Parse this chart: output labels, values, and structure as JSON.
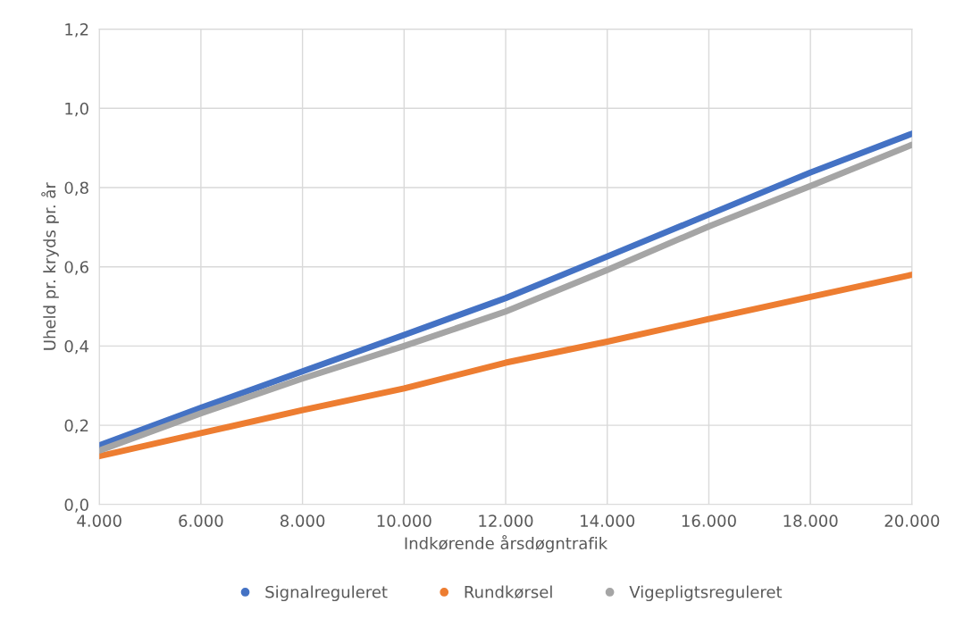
{
  "chart_data": {
    "type": "line",
    "xlabel": "Indkørende årsdøgntrafik",
    "ylabel": "Uheld pr. kryds pr. år",
    "x": [
      4000,
      6000,
      8000,
      10000,
      12000,
      14000,
      16000,
      18000,
      20000
    ],
    "series": [
      {
        "name": "Signalreguleret",
        "color": "#4472c4",
        "values": [
          0.149,
          0.244,
          0.336,
          0.428,
          0.521,
          0.626,
          0.732,
          0.838,
          0.936
        ]
      },
      {
        "name": "Rundkørsel",
        "color": "#ed7d31",
        "values": [
          0.122,
          0.18,
          0.238,
          0.293,
          0.358,
          0.411,
          0.468,
          0.524,
          0.58
        ]
      },
      {
        "name": "Vigepligtsreguleret",
        "color": "#a5a5a5",
        "values": [
          0.136,
          0.23,
          0.318,
          0.4,
          0.487,
          0.592,
          0.702,
          0.804,
          0.908
        ]
      }
    ],
    "xlim": [
      4000,
      20000
    ],
    "ylim": [
      0,
      1.2
    ],
    "xticks": [
      {
        "value": 4000,
        "label": "4.000"
      },
      {
        "value": 6000,
        "label": "6.000"
      },
      {
        "value": 8000,
        "label": "8.000"
      },
      {
        "value": 10000,
        "label": "10.000"
      },
      {
        "value": 12000,
        "label": "12.000"
      },
      {
        "value": 14000,
        "label": "14.000"
      },
      {
        "value": 16000,
        "label": "16.000"
      },
      {
        "value": 18000,
        "label": "18.000"
      },
      {
        "value": 20000,
        "label": "20.000"
      }
    ],
    "yticks": [
      {
        "value": 0,
        "label": "0,0"
      },
      {
        "value": 0.2,
        "label": "0,2"
      },
      {
        "value": 0.4,
        "label": "0,4"
      },
      {
        "value": 0.6,
        "label": "0,6"
      },
      {
        "value": 0.8,
        "label": "0,8"
      },
      {
        "value": 1.0,
        "label": "1,0"
      },
      {
        "value": 1.2,
        "label": "1,2"
      }
    ],
    "grid": true,
    "legend": "bottom",
    "line_style": "solid"
  }
}
